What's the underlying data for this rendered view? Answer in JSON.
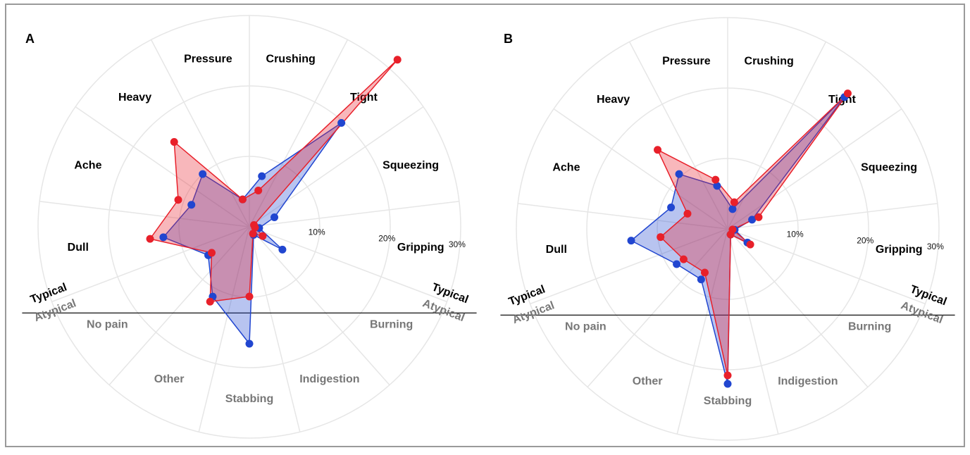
{
  "chart_data": [
    {
      "type": "radar",
      "title": "A",
      "categories": [
        "Pressure",
        "Crushing",
        "Tight",
        "Squeezing",
        "Gripping",
        "Burning",
        "Indigestion",
        "Stabbing",
        "Other",
        "No pain",
        "Dull",
        "Ache",
        "Heavy"
      ],
      "category_colors": [
        "#000000",
        "#000000",
        "#000000",
        "#000000",
        "#000000",
        "#777777",
        "#777777",
        "#777777",
        "#777777",
        "#777777",
        "#000000",
        "#000000",
        "#000000"
      ],
      "series": [
        {
          "color": "#2146d0",
          "values": [
            4.0,
            7.4,
            19.7,
            3.8,
            1.4,
            5.7,
            1.3,
            16.6,
            11.2,
            7.1,
            12.3,
            8.8,
            10.0
          ]
        },
        {
          "color": "#e8202a",
          "values": [
            4.0,
            5.3,
            31.7,
            0.7,
            0.8,
            2.3,
            1.1,
            9.9,
            12.0,
            6.5,
            14.2,
            10.8,
            16.1
          ]
        }
      ],
      "group_labels": [
        "Typical",
        "Atypical"
      ],
      "rlim": [
        0,
        30
      ],
      "rticks": [
        {
          "value": 10,
          "label": "10%"
        },
        {
          "value": 20,
          "label": "20%"
        },
        {
          "value": 30,
          "label": "30%"
        }
      ]
    },
    {
      "type": "radar",
      "title": "B",
      "categories": [
        "Pressure",
        "Crushing",
        "Tight",
        "Squeezing",
        "Gripping",
        "Burning",
        "Indigestion",
        "Stabbing",
        "Other",
        "No pain",
        "Dull",
        "Ache",
        "Heavy"
      ],
      "category_colors": [
        "#000000",
        "#000000",
        "#000000",
        "#000000",
        "#000000",
        "#777777",
        "#777777",
        "#777777",
        "#777777",
        "#777777",
        "#000000",
        "#000000",
        "#000000"
      ],
      "series": [
        {
          "color": "#2146d0",
          "values": [
            6.3,
            2.9,
            25.0,
            3.7,
            1.0,
            3.4,
            0.9,
            22.0,
            8.1,
            8.8,
            13.8,
            8.6,
            10.4
          ]
        },
        {
          "color": "#e8202a",
          "values": [
            7.2,
            3.9,
            25.7,
            4.7,
            0.7,
            3.9,
            0.9,
            20.8,
            7.0,
            7.6,
            9.6,
            6.1,
            15.0
          ]
        }
      ],
      "group_labels": [
        "Typical",
        "Atypical"
      ],
      "rlim": [
        0,
        30
      ],
      "rticks": [
        {
          "value": 10,
          "label": "10%"
        },
        {
          "value": 20,
          "label": "20%"
        },
        {
          "value": 30,
          "label": "30%"
        }
      ]
    }
  ]
}
